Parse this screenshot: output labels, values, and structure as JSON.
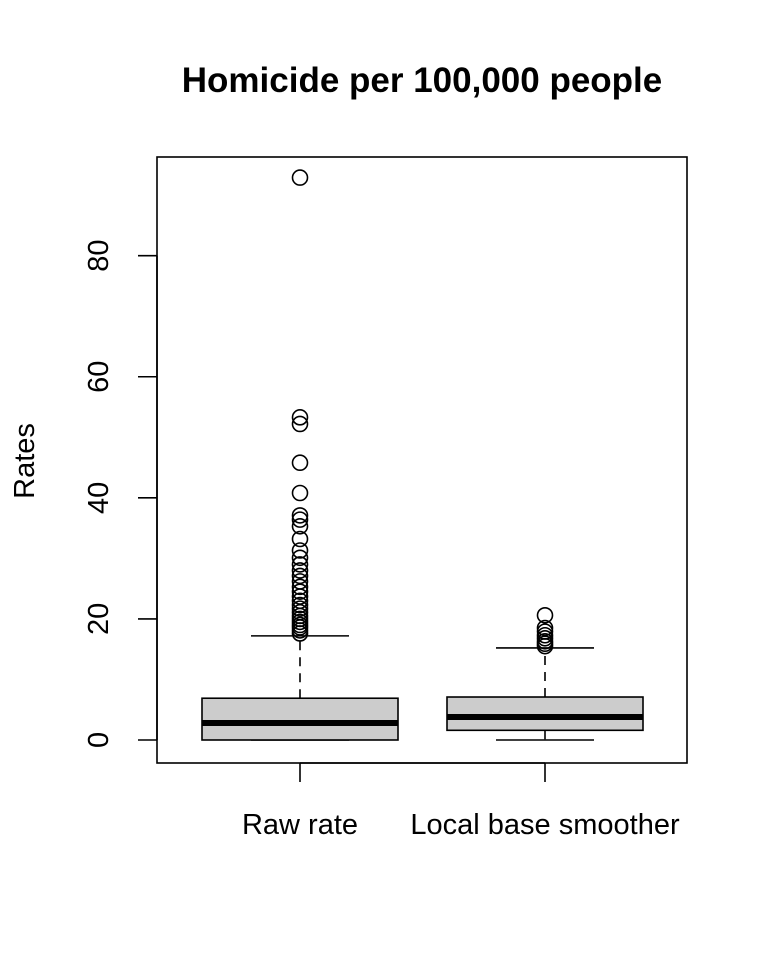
{
  "chart_data": {
    "type": "boxplot",
    "title": "Homicide per 100,000 people",
    "xlabel": "",
    "ylabel": "Rates",
    "ylim": [
      -3.8,
      96.3
    ],
    "yticks": [
      0,
      20,
      40,
      60,
      80
    ],
    "grid": false,
    "box_fill": "#cccccc",
    "categories": [
      "Raw rate",
      "Local base smoother"
    ],
    "boxes": [
      {
        "category": "Raw rate",
        "whisker_low": 0,
        "q1": 0,
        "median": 2.8,
        "q3": 6.9,
        "whisker_high": 17.2,
        "outliers": [
          17.6,
          18.1,
          18.6,
          19.0,
          19.5,
          20.0,
          20.5,
          21.1,
          21.7,
          22.3,
          23.0,
          23.7,
          24.5,
          25.3,
          26.2,
          27.1,
          28.0,
          29.0,
          30.1,
          31.3,
          33.2,
          35.3,
          36.4,
          37.1,
          40.8,
          45.8,
          52.2,
          53.3,
          92.9
        ]
      },
      {
        "category": "Local base smoother",
        "whisker_low": 0,
        "q1": 1.6,
        "median": 3.8,
        "q3": 7.1,
        "whisker_high": 15.2,
        "outliers": [
          15.5,
          15.9,
          16.3,
          16.8,
          17.3,
          17.9,
          18.5,
          20.6
        ]
      }
    ]
  }
}
